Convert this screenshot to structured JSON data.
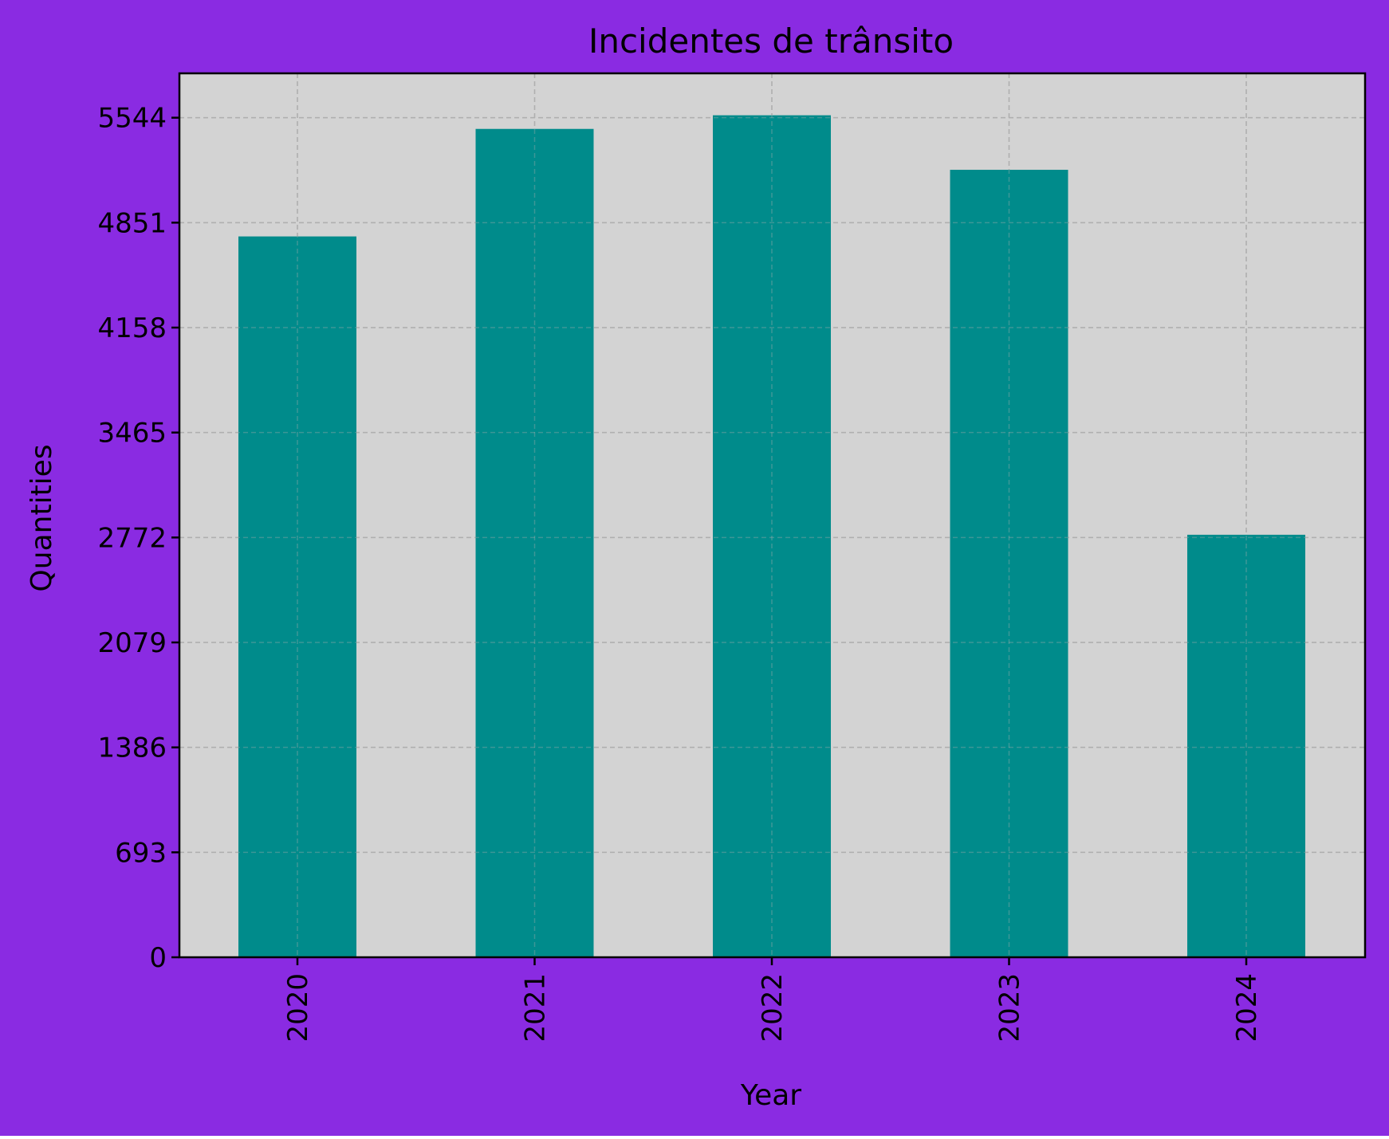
{
  "colors": {
    "figure_background": "#8a2be2",
    "plot_background": "#d3d3d3",
    "bar": "#008b8b",
    "grid": "#b0b0b0",
    "axis": "#000000"
  },
  "chart_data": {
    "type": "bar",
    "title": "Incidentes de trânsito",
    "xlabel": "Year",
    "ylabel": "Quantities",
    "categories": [
      "2020",
      "2021",
      "2022",
      "2023",
      "2024"
    ],
    "values": [
      4760,
      5470,
      5560,
      5200,
      2790
    ],
    "ylim": [
      0,
      5837
    ],
    "yticks": [
      0,
      693,
      1386,
      2079,
      2772,
      3465,
      4158,
      4851,
      5544
    ],
    "ytick_labels": [
      "0",
      "693",
      "1386",
      "2079",
      "2772",
      "3465",
      "4158",
      "4851",
      "5544"
    ],
    "xtick_rotation": "vertical",
    "grid": true,
    "grid_style": "dashed",
    "legend": false
  }
}
